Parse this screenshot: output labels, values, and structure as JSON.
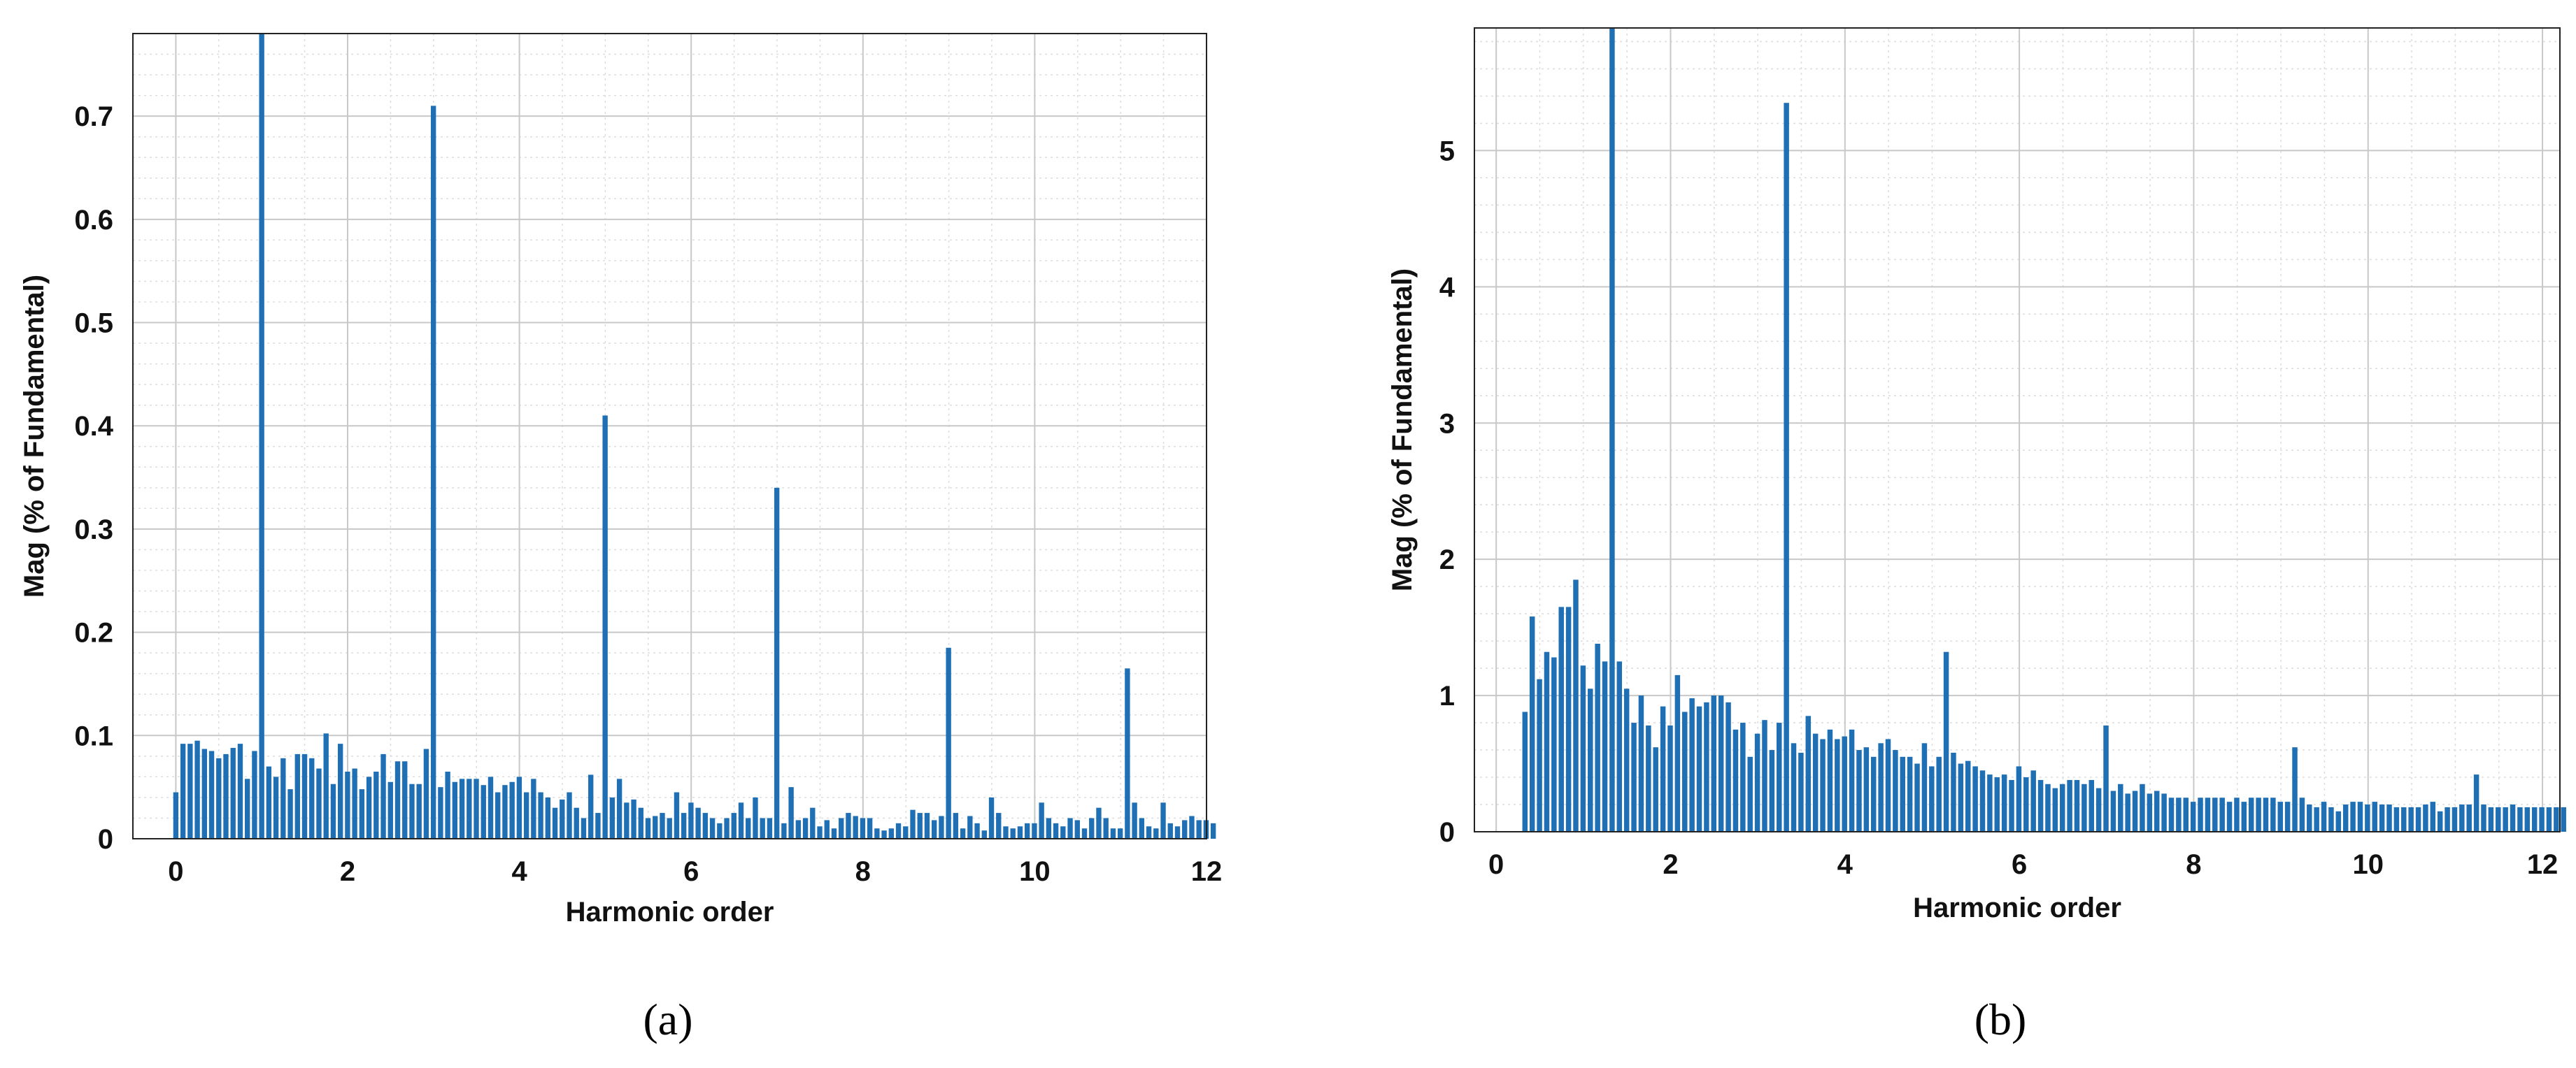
{
  "colors": {
    "bar": "#1f6fb5",
    "axis": "#222222",
    "grid_major": "#c8c8c8",
    "grid_minor": "#dddddd"
  },
  "chart_data": [
    {
      "type": "bar",
      "panel_label": "(a)",
      "xlabel": "Harmonic order",
      "ylabel": "Mag (% of Fundamental)",
      "xlim": [
        -0.5,
        12
      ],
      "ylim": [
        0,
        0.78
      ],
      "xticks": [
        0,
        2,
        4,
        6,
        8,
        10,
        12
      ],
      "yticks": [
        0,
        0.1,
        0.2,
        0.3,
        0.4,
        0.5,
        0.6,
        0.7
      ],
      "ytick_labels": [
        "0",
        "0.1",
        "0.2",
        "0.3",
        "0.4",
        "0.5",
        "0.6",
        "0.7"
      ],
      "grid": true,
      "minor_grid": true,
      "bar_step": 0.0833,
      "x_start": 0,
      "values": [
        0.045,
        0.092,
        0.092,
        0.095,
        0.087,
        0.085,
        0.078,
        0.082,
        0.088,
        0.092,
        0.058,
        0.085,
        0.78,
        0.07,
        0.06,
        0.078,
        0.048,
        0.082,
        0.082,
        0.078,
        0.068,
        0.102,
        0.053,
        0.092,
        0.065,
        0.068,
        0.048,
        0.06,
        0.065,
        0.082,
        0.055,
        0.075,
        0.075,
        0.053,
        0.053,
        0.087,
        0.71,
        0.05,
        0.065,
        0.055,
        0.058,
        0.058,
        0.058,
        0.052,
        0.06,
        0.045,
        0.052,
        0.055,
        0.06,
        0.045,
        0.058,
        0.045,
        0.04,
        0.03,
        0.038,
        0.045,
        0.03,
        0.02,
        0.062,
        0.025,
        0.41,
        0.04,
        0.058,
        0.035,
        0.038,
        0.03,
        0.02,
        0.022,
        0.025,
        0.02,
        0.045,
        0.025,
        0.035,
        0.03,
        0.025,
        0.02,
        0.015,
        0.02,
        0.025,
        0.035,
        0.02,
        0.04,
        0.02,
        0.02,
        0.34,
        0.015,
        0.05,
        0.018,
        0.02,
        0.03,
        0.012,
        0.018,
        0.01,
        0.02,
        0.025,
        0.022,
        0.02,
        0.02,
        0.01,
        0.008,
        0.01,
        0.015,
        0.012,
        0.028,
        0.025,
        0.025,
        0.018,
        0.022,
        0.185,
        0.025,
        0.01,
        0.022,
        0.015,
        0.008,
        0.04,
        0.025,
        0.012,
        0.01,
        0.012,
        0.015,
        0.015,
        0.035,
        0.02,
        0.015,
        0.012,
        0.02,
        0.018,
        0.01,
        0.02,
        0.03,
        0.02,
        0.01,
        0.01,
        0.165,
        0.035,
        0.02,
        0.012,
        0.01,
        0.035,
        0.015,
        0.012,
        0.018,
        0.022,
        0.018,
        0.018,
        0.015
      ]
    },
    {
      "type": "bar",
      "panel_label": "(b)",
      "xlabel": "Harmonic order",
      "ylabel": "Mag (% of Fundamental)",
      "xlim": [
        -0.25,
        12.2
      ],
      "ylim": [
        0,
        5.9
      ],
      "xticks": [
        0,
        2,
        4,
        6,
        8,
        10,
        12
      ],
      "yticks": [
        0,
        1,
        2,
        3,
        4,
        5
      ],
      "ytick_labels": [
        "0",
        "1",
        "2",
        "3",
        "4",
        "5"
      ],
      "grid": true,
      "minor_grid": true,
      "bar_step": 0.0833,
      "x_start": 0.33,
      "values": [
        0.88,
        1.58,
        1.12,
        1.32,
        1.28,
        1.65,
        1.65,
        1.85,
        1.22,
        1.05,
        1.38,
        1.25,
        5.9,
        1.25,
        1.05,
        0.8,
        1.0,
        0.78,
        0.62,
        0.92,
        0.78,
        1.15,
        0.88,
        0.98,
        0.92,
        0.95,
        1.0,
        1.0,
        0.95,
        0.75,
        0.8,
        0.55,
        0.72,
        0.82,
        0.6,
        0.8,
        5.35,
        0.65,
        0.58,
        0.85,
        0.72,
        0.68,
        0.75,
        0.68,
        0.7,
        0.75,
        0.6,
        0.62,
        0.55,
        0.65,
        0.68,
        0.6,
        0.55,
        0.55,
        0.5,
        0.65,
        0.48,
        0.55,
        1.32,
        0.58,
        0.5,
        0.52,
        0.48,
        0.45,
        0.42,
        0.4,
        0.42,
        0.38,
        0.48,
        0.4,
        0.45,
        0.38,
        0.35,
        0.32,
        0.35,
        0.38,
        0.38,
        0.35,
        0.38,
        0.32,
        0.78,
        0.3,
        0.35,
        0.28,
        0.3,
        0.35,
        0.28,
        0.3,
        0.28,
        0.25,
        0.25,
        0.25,
        0.22,
        0.25,
        0.25,
        0.25,
        0.25,
        0.22,
        0.25,
        0.22,
        0.25,
        0.25,
        0.25,
        0.25,
        0.22,
        0.22,
        0.62,
        0.25,
        0.2,
        0.18,
        0.22,
        0.18,
        0.15,
        0.2,
        0.22,
        0.22,
        0.2,
        0.22,
        0.2,
        0.2,
        0.18,
        0.18,
        0.18,
        0.18,
        0.2,
        0.22,
        0.15,
        0.18,
        0.18,
        0.2,
        0.2,
        0.42,
        0.2,
        0.18,
        0.18,
        0.18,
        0.2,
        0.18,
        0.18,
        0.18,
        0.18,
        0.18,
        0.18,
        0.18
      ]
    }
  ]
}
